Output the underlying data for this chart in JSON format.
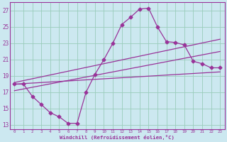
{
  "xlabel": "Windchill (Refroidissement éolien,°C)",
  "bg_color": "#cce8f0",
  "grid_color": "#99ccbb",
  "line_color": "#993399",
  "spine_color": "#993399",
  "xlim": [
    -0.5,
    23.5
  ],
  "ylim": [
    12.5,
    28.0
  ],
  "xticks": [
    0,
    1,
    2,
    3,
    4,
    5,
    6,
    7,
    8,
    9,
    10,
    11,
    12,
    13,
    14,
    15,
    16,
    17,
    18,
    19,
    20,
    21,
    22,
    23
  ],
  "yticks": [
    13,
    15,
    17,
    19,
    21,
    23,
    25,
    27
  ],
  "curve1_x": [
    0,
    1,
    2,
    3,
    4,
    5,
    6,
    7,
    8,
    9,
    10,
    11,
    12,
    13,
    14,
    15,
    16,
    17,
    18,
    19,
    20,
    21,
    22,
    23
  ],
  "curve1_y": [
    18.0,
    18.0,
    16.5,
    15.5,
    14.5,
    14.0,
    13.2,
    13.2,
    17.0,
    19.2,
    21.0,
    23.0,
    25.3,
    26.2,
    27.2,
    27.3,
    25.0,
    23.2,
    23.1,
    22.8,
    20.8,
    20.5,
    20.0,
    20.0
  ],
  "line1_x": [
    0,
    23
  ],
  "line1_y": [
    18.0,
    19.5
  ],
  "line2_x": [
    0,
    23
  ],
  "line2_y": [
    17.2,
    22.0
  ],
  "line3_x": [
    0,
    23
  ],
  "line3_y": [
    18.2,
    23.5
  ]
}
